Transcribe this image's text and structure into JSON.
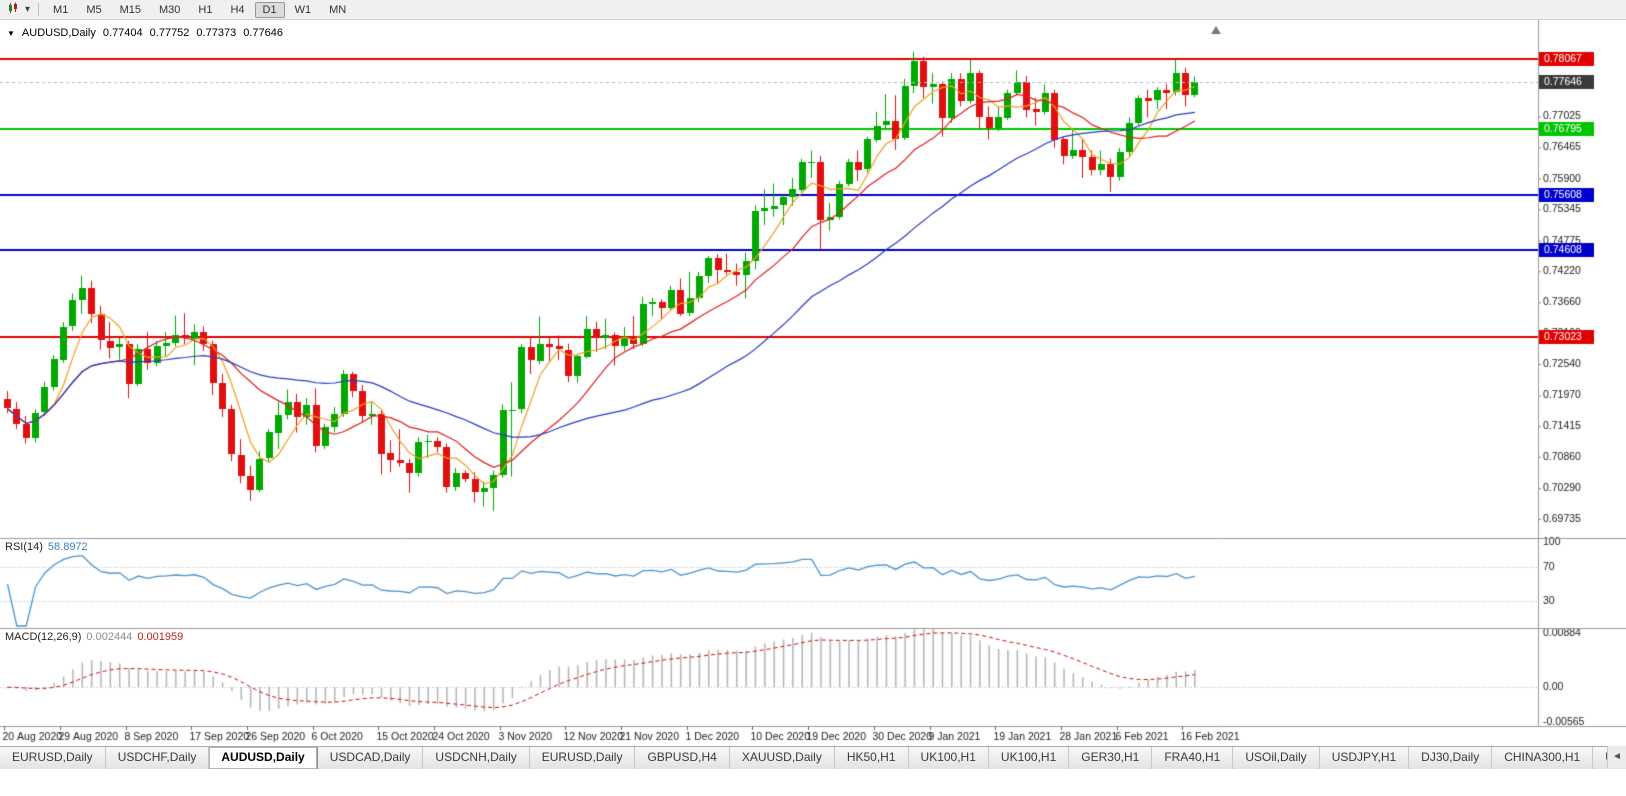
{
  "toolbar": {
    "timeframes": [
      "M1",
      "M5",
      "M15",
      "M30",
      "H1",
      "H4",
      "D1",
      "W1",
      "MN"
    ],
    "active_timeframe": "D1"
  },
  "chart": {
    "title": {
      "symbol": "AUDUSD,Daily",
      "open": "0.77404",
      "high": "0.77752",
      "low": "0.77373",
      "close": "0.77646"
    },
    "up_color": "#00a800",
    "down_color": "#e01010",
    "price_axis": {
      "min": 0.6946,
      "max": 0.7863,
      "labels": [
        "0.77025",
        "0.76465",
        "0.75900",
        "0.75345",
        "0.74775",
        "0.74220",
        "0.73660",
        "0.73100",
        "0.72540",
        "0.71970",
        "0.71415",
        "0.70860",
        "0.70290",
        "0.69735"
      ]
    },
    "hlines": [
      {
        "value": 0.78067,
        "label": "0.78067",
        "color": "#e00000"
      },
      {
        "value": 0.76795,
        "label": "0.76795",
        "color": "#00c400"
      },
      {
        "value": 0.75608,
        "label": "0.75608",
        "color": "#0000cc"
      },
      {
        "value": 0.74608,
        "label": "0.74608",
        "color": "#0000cc"
      },
      {
        "value": 0.73023,
        "label": "0.73023",
        "color": "#e00000"
      }
    ],
    "current_price": {
      "value": 0.77646,
      "label": "0.77646",
      "badge_color": "#3a3a3a"
    },
    "ma": [
      {
        "period": 5,
        "color": "#f0a020"
      },
      {
        "period": 13,
        "color": "#e02020"
      },
      {
        "period": 34,
        "color": "#2a3cc4"
      }
    ],
    "dates": [
      [
        "20 Aug 2020",
        0
      ],
      [
        "29 Aug 2020",
        6
      ],
      [
        "8 Sep 2020",
        13
      ],
      [
        "17 Sep 2020",
        20
      ],
      [
        "26 Sep 2020",
        26
      ],
      [
        "6 Oct 2020",
        33
      ],
      [
        "15 Oct 2020",
        40
      ],
      [
        "24 Oct 2020",
        46
      ],
      [
        "3 Nov 2020",
        53
      ],
      [
        "12 Nov 2020",
        60
      ],
      [
        "21 Nov 2020",
        66
      ],
      [
        "1 Dec 2020",
        73
      ],
      [
        "10 Dec 2020",
        80
      ],
      [
        "19 Dec 2020",
        86
      ],
      [
        "30 Dec 2020",
        93
      ],
      [
        "9 Jan 2021",
        99
      ],
      [
        "19 Jan 2021",
        106
      ],
      [
        "28 Jan 2021",
        113
      ],
      [
        "6 Feb 2021",
        119
      ],
      [
        "16 Feb 2021",
        126
      ]
    ],
    "candles": [
      [
        0.719,
        0.7205,
        0.7165,
        0.7173
      ],
      [
        0.7173,
        0.7185,
        0.7136,
        0.7146
      ],
      [
        0.7146,
        0.716,
        0.711,
        0.712
      ],
      [
        0.712,
        0.7172,
        0.7112,
        0.7166
      ],
      [
        0.7166,
        0.7222,
        0.716,
        0.7212
      ],
      [
        0.7212,
        0.727,
        0.7206,
        0.7263
      ],
      [
        0.7263,
        0.733,
        0.7256,
        0.7322
      ],
      [
        0.7322,
        0.7382,
        0.7314,
        0.737
      ],
      [
        0.737,
        0.7414,
        0.7345,
        0.7392
      ],
      [
        0.7392,
        0.7405,
        0.7328,
        0.7344
      ],
      [
        0.7344,
        0.736,
        0.728,
        0.7296
      ],
      [
        0.7296,
        0.733,
        0.7264,
        0.7284
      ],
      [
        0.7284,
        0.7302,
        0.7262,
        0.729
      ],
      [
        0.729,
        0.7296,
        0.7192,
        0.7218
      ],
      [
        0.7218,
        0.729,
        0.7214,
        0.7282
      ],
      [
        0.7282,
        0.7312,
        0.7244,
        0.7256
      ],
      [
        0.7256,
        0.7296,
        0.725,
        0.7286
      ],
      [
        0.7286,
        0.7312,
        0.7268,
        0.7292
      ],
      [
        0.7292,
        0.7342,
        0.7286,
        0.7306
      ],
      [
        0.7306,
        0.7346,
        0.729,
        0.73
      ],
      [
        0.73,
        0.7326,
        0.7252,
        0.7312
      ],
      [
        0.7312,
        0.7322,
        0.7278,
        0.729
      ],
      [
        0.729,
        0.7296,
        0.7198,
        0.722
      ],
      [
        0.722,
        0.7236,
        0.7158,
        0.7172
      ],
      [
        0.7172,
        0.718,
        0.7078,
        0.709
      ],
      [
        0.709,
        0.7118,
        0.7038,
        0.7052
      ],
      [
        0.7052,
        0.707,
        0.7006,
        0.7026
      ],
      [
        0.7026,
        0.7096,
        0.7022,
        0.7082
      ],
      [
        0.7082,
        0.7136,
        0.7076,
        0.713
      ],
      [
        0.713,
        0.7186,
        0.71,
        0.7162
      ],
      [
        0.7162,
        0.7208,
        0.7154,
        0.7186
      ],
      [
        0.7186,
        0.72,
        0.713,
        0.7158
      ],
      [
        0.7158,
        0.7192,
        0.7144,
        0.718
      ],
      [
        0.718,
        0.721,
        0.7094,
        0.7106
      ],
      [
        0.7106,
        0.7146,
        0.71,
        0.714
      ],
      [
        0.714,
        0.7176,
        0.713,
        0.7164
      ],
      [
        0.7164,
        0.7243,
        0.7158,
        0.7236
      ],
      [
        0.7236,
        0.724,
        0.7194,
        0.7206
      ],
      [
        0.7206,
        0.7216,
        0.7148,
        0.716
      ],
      [
        0.716,
        0.7186,
        0.7144,
        0.7164
      ],
      [
        0.7164,
        0.717,
        0.7054,
        0.7092
      ],
      [
        0.7092,
        0.7116,
        0.7058,
        0.708
      ],
      [
        0.708,
        0.7136,
        0.7068,
        0.7074
      ],
      [
        0.7074,
        0.7082,
        0.7021,
        0.7056
      ],
      [
        0.7056,
        0.7121,
        0.705,
        0.7112
      ],
      [
        0.7112,
        0.7126,
        0.7084,
        0.7114
      ],
      [
        0.7114,
        0.7121,
        0.7094,
        0.7104
      ],
      [
        0.7104,
        0.711,
        0.7021,
        0.7031
      ],
      [
        0.7031,
        0.7066,
        0.7024,
        0.7056
      ],
      [
        0.7056,
        0.7061,
        0.704,
        0.7046
      ],
      [
        0.7046,
        0.7058,
        0.7003,
        0.7022
      ],
      [
        0.7022,
        0.7041,
        0.6996,
        0.7029
      ],
      [
        0.7029,
        0.7061,
        0.6988,
        0.7053
      ],
      [
        0.7053,
        0.7181,
        0.7048,
        0.717
      ],
      [
        0.717,
        0.7221,
        0.705,
        0.7171
      ],
      [
        0.7171,
        0.729,
        0.7165,
        0.7284
      ],
      [
        0.7284,
        0.7301,
        0.7236,
        0.726
      ],
      [
        0.726,
        0.734,
        0.7254,
        0.7291
      ],
      [
        0.7291,
        0.7301,
        0.726,
        0.7286
      ],
      [
        0.7286,
        0.7306,
        0.7261,
        0.728
      ],
      [
        0.728,
        0.7291,
        0.7221,
        0.7232
      ],
      [
        0.7232,
        0.7271,
        0.722,
        0.7268
      ],
      [
        0.7268,
        0.7341,
        0.7264,
        0.7318
      ],
      [
        0.7318,
        0.7331,
        0.7276,
        0.7301
      ],
      [
        0.7301,
        0.7336,
        0.7281,
        0.7306
      ],
      [
        0.7306,
        0.7311,
        0.7251,
        0.7286
      ],
      [
        0.7286,
        0.7321,
        0.7278,
        0.7303
      ],
      [
        0.7303,
        0.7341,
        0.7281,
        0.7291
      ],
      [
        0.7291,
        0.7376,
        0.7286,
        0.7363
      ],
      [
        0.7363,
        0.7374,
        0.7341,
        0.7366
      ],
      [
        0.7366,
        0.7371,
        0.7336,
        0.7356
      ],
      [
        0.7356,
        0.7396,
        0.7351,
        0.7389
      ],
      [
        0.7389,
        0.7409,
        0.7341,
        0.7346
      ],
      [
        0.7346,
        0.7421,
        0.7341,
        0.7373
      ],
      [
        0.7373,
        0.7421,
        0.7366,
        0.7413
      ],
      [
        0.7413,
        0.745,
        0.7401,
        0.7446
      ],
      [
        0.7446,
        0.7453,
        0.7401,
        0.7424
      ],
      [
        0.7424,
        0.7454,
        0.7416,
        0.7421
      ],
      [
        0.7421,
        0.7436,
        0.7396,
        0.7416
      ],
      [
        0.7416,
        0.7456,
        0.7373,
        0.7441
      ],
      [
        0.7441,
        0.7542,
        0.7426,
        0.7531
      ],
      [
        0.7531,
        0.7571,
        0.7506,
        0.7536
      ],
      [
        0.7536,
        0.7581,
        0.7521,
        0.7541
      ],
      [
        0.7541,
        0.7561,
        0.7506,
        0.7556
      ],
      [
        0.7556,
        0.7591,
        0.7541,
        0.7571
      ],
      [
        0.7571,
        0.7626,
        0.7566,
        0.7621
      ],
      [
        0.7621,
        0.7641,
        0.7591,
        0.7621
      ],
      [
        0.7621,
        0.7631,
        0.7461,
        0.7516
      ],
      [
        0.7516,
        0.7546,
        0.7496,
        0.7521
      ],
      [
        0.7521,
        0.7586,
        0.7516,
        0.7581
      ],
      [
        0.7581,
        0.7626,
        0.7576,
        0.7621
      ],
      [
        0.7621,
        0.7641,
        0.7586,
        0.7606
      ],
      [
        0.7606,
        0.7666,
        0.7601,
        0.7661
      ],
      [
        0.7661,
        0.7711,
        0.7656,
        0.7686
      ],
      [
        0.7686,
        0.7743,
        0.7681,
        0.7694
      ],
      [
        0.7694,
        0.7741,
        0.7642,
        0.7662
      ],
      [
        0.7662,
        0.7771,
        0.766,
        0.7757
      ],
      [
        0.7757,
        0.782,
        0.7745,
        0.7803
      ],
      [
        0.7803,
        0.7811,
        0.7736,
        0.7756
      ],
      [
        0.7756,
        0.7781,
        0.7726,
        0.7761
      ],
      [
        0.7761,
        0.7766,
        0.7666,
        0.77
      ],
      [
        0.77,
        0.7781,
        0.7691,
        0.777
      ],
      [
        0.777,
        0.7781,
        0.7721,
        0.7731
      ],
      [
        0.7731,
        0.7806,
        0.7726,
        0.7781
      ],
      [
        0.7781,
        0.7786,
        0.7681,
        0.7701
      ],
      [
        0.7701,
        0.7721,
        0.7661,
        0.7681
      ],
      [
        0.7681,
        0.7721,
        0.7676,
        0.7701
      ],
      [
        0.7701,
        0.7751,
        0.7696,
        0.7746
      ],
      [
        0.7746,
        0.7786,
        0.7741,
        0.7766
      ],
      [
        0.7766,
        0.7776,
        0.7701,
        0.7716
      ],
      [
        0.7716,
        0.7736,
        0.7686,
        0.7711
      ],
      [
        0.7711,
        0.7761,
        0.7706,
        0.7746
      ],
      [
        0.7746,
        0.7751,
        0.7646,
        0.7661
      ],
      [
        0.7661,
        0.7666,
        0.7616,
        0.7631
      ],
      [
        0.7631,
        0.7681,
        0.7626,
        0.7641
      ],
      [
        0.7641,
        0.7661,
        0.7591,
        0.7629
      ],
      [
        0.7629,
        0.7641,
        0.7596,
        0.7606
      ],
      [
        0.7606,
        0.7641,
        0.7596,
        0.7616
      ],
      [
        0.7616,
        0.7626,
        0.7566,
        0.7593
      ],
      [
        0.7593,
        0.7646,
        0.7586,
        0.7639
      ],
      [
        0.7639,
        0.7701,
        0.7631,
        0.7691
      ],
      [
        0.7691,
        0.7741,
        0.7686,
        0.7737
      ],
      [
        0.7737,
        0.7751,
        0.7701,
        0.7732
      ],
      [
        0.7732,
        0.7756,
        0.7716,
        0.7751
      ],
      [
        0.7751,
        0.7761,
        0.7716,
        0.7746
      ],
      [
        0.7746,
        0.7806,
        0.7741,
        0.7781
      ],
      [
        0.7781,
        0.7791,
        0.7721,
        0.7742
      ],
      [
        0.77404,
        0.77752,
        0.77373,
        0.77646
      ]
    ]
  },
  "rsi": {
    "name": "RSI(14)",
    "value": "58.8972",
    "period": 14,
    "color": "#4f94cd",
    "axis_labels": [
      "100",
      "70",
      "30"
    ],
    "level_lines": [
      70,
      30
    ]
  },
  "macd": {
    "name": "MACD(12,26,9)",
    "value": "0.002444",
    "signal_value": "0.001959",
    "fast": 12,
    "slow": 26,
    "signal": 9,
    "histogram_color": "#b4b4b4",
    "signal_color": "#d01010",
    "axis_labels": [
      "0.00884",
      "0.00",
      "-0.00565"
    ],
    "range_min": -0.006,
    "range_max": 0.009
  },
  "tabs": {
    "items": [
      "EURUSD,Daily",
      "USDCHF,Daily",
      "AUDUSD,Daily",
      "USDCAD,Daily",
      "USDCNH,Daily",
      "EURUSD,Daily",
      "GBPUSD,H4",
      "XAUUSD,Daily",
      "HK50,H1",
      "UK100,H1",
      "UK100,H1",
      "GER30,H1",
      "FRA40,H1",
      "USOil,Daily",
      "USDJPY,H1",
      "DJ30,Daily",
      "CHINA300,H1",
      "USC"
    ],
    "active_index": 2,
    "scroll_arrow": "◄"
  }
}
